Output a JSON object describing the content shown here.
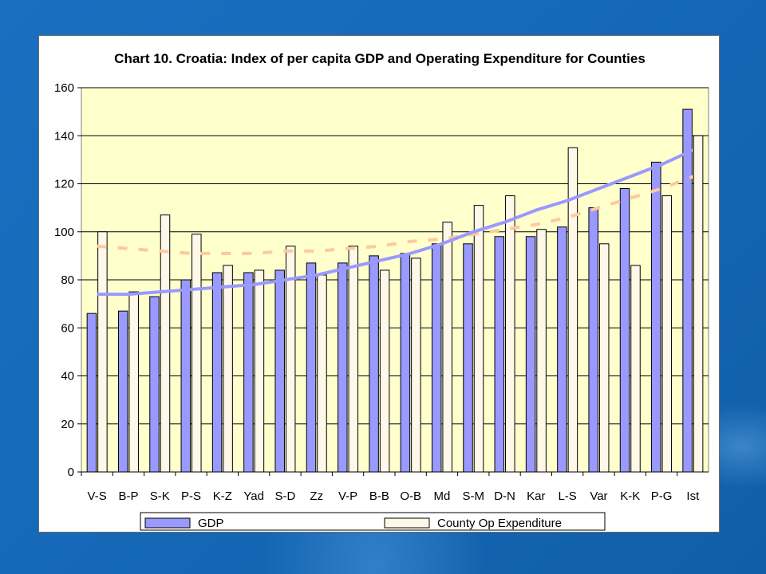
{
  "colors": {
    "background": "#1669b8",
    "plot_area": "#ffffcc",
    "gdp_bar": "#9999ff",
    "expenditure_bar": "#fff8e8",
    "gdp_trend": "#9999ff",
    "expenditure_trend": "#ffc8a0"
  },
  "chart_data": {
    "type": "bar",
    "title": "Chart 10. Croatia: Index of per capita GDP and Operating Expenditure for Counties",
    "xlabel": "",
    "ylabel": "",
    "ylim": [
      0,
      160
    ],
    "yticks": [
      "0",
      "20",
      "40",
      "60",
      "80",
      "100",
      "120",
      "140",
      "160"
    ],
    "grid": true,
    "legend_position": "bottom",
    "categories": [
      "V-S",
      "B-P",
      "S-K",
      "P-S",
      "K-Z",
      "Yad",
      "S-D",
      "Zz",
      "V-P",
      "B-B",
      "O-B",
      "Md",
      "S-M",
      "D-N",
      "Kar",
      "L-S",
      "Var",
      "K-K",
      "P-G",
      "Ist"
    ],
    "series": [
      {
        "name": "GDP",
        "values": [
          66,
          67,
          73,
          80,
          83,
          83,
          84,
          87,
          87,
          90,
          91,
          95,
          95,
          98,
          98,
          102,
          110,
          118,
          129,
          151
        ],
        "trend": [
          74,
          74,
          75,
          76,
          77,
          78,
          80,
          82,
          85,
          88,
          91,
          95,
          100,
          104,
          109,
          113,
          118,
          123,
          128,
          134
        ]
      },
      {
        "name": "County Op Expenditure",
        "values": [
          100,
          75,
          107,
          99,
          86,
          84,
          94,
          82,
          94,
          84,
          89,
          104,
          111,
          115,
          101,
          135,
          95,
          86,
          115,
          140
        ],
        "trend": [
          94,
          93,
          92,
          91,
          91,
          91,
          92,
          92,
          93,
          94,
          96,
          97,
          99,
          101,
          103,
          106,
          110,
          114,
          118,
          123
        ]
      }
    ]
  }
}
